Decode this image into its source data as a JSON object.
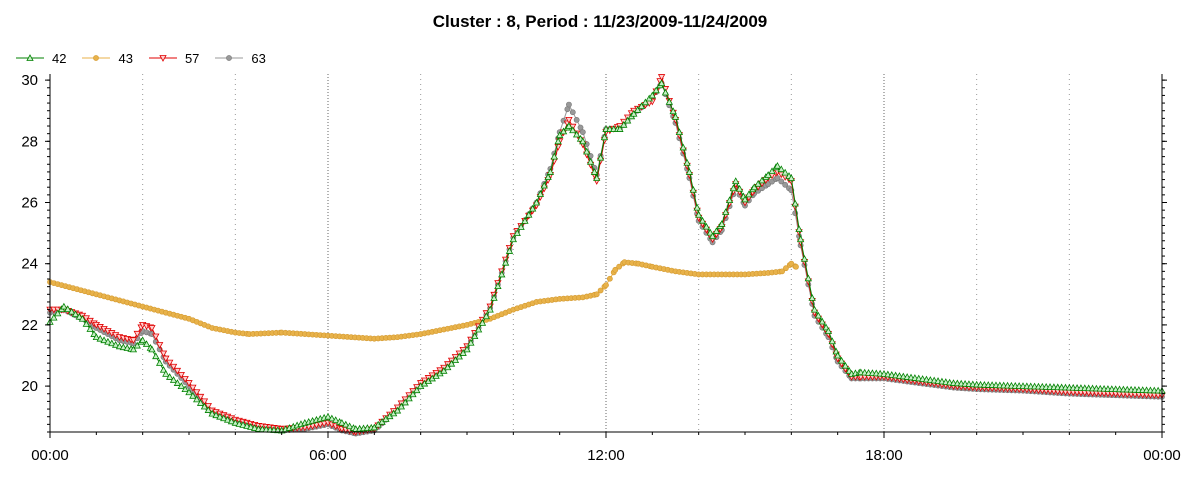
{
  "chart_data": {
    "type": "line",
    "title": "Cluster : 8, Period : 11/23/2009-11/24/2009",
    "xlabel": "",
    "ylabel": "",
    "x_ticks": [
      "00:00",
      "06:00",
      "12:00",
      "18:00",
      "00:00"
    ],
    "x_range_hours": [
      0,
      24
    ],
    "ylim": [
      18.5,
      30.2
    ],
    "y_ticks": [
      "20",
      "22",
      "24",
      "26",
      "28",
      "30"
    ],
    "grid": true,
    "legend_position": "top-left",
    "series": [
      {
        "name": "42",
        "color": "#008000",
        "marker": "triangle-up",
        "points": [
          [
            0,
            22.1
          ],
          [
            0.3,
            22.6
          ],
          [
            0.7,
            22.2
          ],
          [
            1.0,
            21.6
          ],
          [
            1.5,
            21.3
          ],
          [
            1.8,
            21.2
          ],
          [
            2.0,
            21.5
          ],
          [
            2.2,
            21.2
          ],
          [
            2.5,
            20.4
          ],
          [
            3.0,
            19.8
          ],
          [
            3.5,
            19.1
          ],
          [
            4.0,
            18.8
          ],
          [
            4.5,
            18.6
          ],
          [
            5.0,
            18.55
          ],
          [
            5.5,
            18.8
          ],
          [
            6.0,
            19.0
          ],
          [
            6.3,
            18.8
          ],
          [
            6.6,
            18.6
          ],
          [
            7.0,
            18.65
          ],
          [
            7.5,
            19.2
          ],
          [
            8.0,
            20.0
          ],
          [
            8.5,
            20.5
          ],
          [
            9.0,
            21.2
          ],
          [
            9.5,
            22.5
          ],
          [
            10.0,
            24.8
          ],
          [
            10.5,
            26.0
          ],
          [
            10.8,
            27.0
          ],
          [
            11.0,
            28.2
          ],
          [
            11.2,
            28.5
          ],
          [
            11.5,
            28.0
          ],
          [
            11.8,
            26.8
          ],
          [
            12.0,
            28.4
          ],
          [
            12.3,
            28.4
          ],
          [
            12.6,
            28.9
          ],
          [
            13.0,
            29.5
          ],
          [
            13.2,
            29.9
          ],
          [
            13.5,
            28.8
          ],
          [
            13.8,
            27.0
          ],
          [
            14.0,
            25.6
          ],
          [
            14.3,
            24.9
          ],
          [
            14.5,
            25.3
          ],
          [
            14.8,
            26.7
          ],
          [
            15.0,
            26.1
          ],
          [
            15.2,
            26.5
          ],
          [
            15.5,
            26.9
          ],
          [
            15.7,
            27.2
          ],
          [
            16.0,
            26.8
          ],
          [
            16.2,
            24.8
          ],
          [
            16.5,
            22.5
          ],
          [
            16.8,
            21.8
          ],
          [
            17.0,
            21.0
          ],
          [
            17.3,
            20.4
          ],
          [
            17.5,
            20.45
          ],
          [
            18.0,
            20.4
          ],
          [
            18.5,
            20.3
          ],
          [
            19.0,
            20.2
          ],
          [
            19.5,
            20.1
          ],
          [
            20.0,
            20.05
          ],
          [
            21.0,
            20.0
          ],
          [
            22.0,
            19.95
          ],
          [
            23.0,
            19.9
          ],
          [
            24.0,
            19.85
          ]
        ]
      },
      {
        "name": "43",
        "color": "#e8b24a",
        "marker": "circle",
        "points": [
          [
            0,
            23.4
          ],
          [
            0.5,
            23.2
          ],
          [
            1.0,
            23.0
          ],
          [
            1.5,
            22.8
          ],
          [
            2.0,
            22.6
          ],
          [
            2.5,
            22.4
          ],
          [
            3.0,
            22.2
          ],
          [
            3.5,
            21.9
          ],
          [
            4.0,
            21.75
          ],
          [
            4.3,
            21.7
          ],
          [
            5.0,
            21.75
          ],
          [
            6.0,
            21.65
          ],
          [
            7.0,
            21.55
          ],
          [
            7.5,
            21.6
          ],
          [
            8.0,
            21.7
          ],
          [
            8.5,
            21.85
          ],
          [
            9.0,
            22.0
          ],
          [
            9.5,
            22.2
          ],
          [
            10.0,
            22.5
          ],
          [
            10.5,
            22.75
          ],
          [
            11.0,
            22.85
          ],
          [
            11.5,
            22.9
          ],
          [
            11.8,
            23.0
          ],
          [
            12.0,
            23.3
          ],
          [
            12.2,
            23.8
          ],
          [
            12.4,
            24.05
          ],
          [
            12.7,
            24.0
          ],
          [
            13.0,
            23.9
          ],
          [
            13.5,
            23.75
          ],
          [
            14.0,
            23.65
          ],
          [
            14.5,
            23.65
          ],
          [
            15.0,
            23.65
          ],
          [
            15.5,
            23.7
          ],
          [
            15.8,
            23.75
          ],
          [
            16.0,
            24.0
          ],
          [
            16.1,
            23.9
          ]
        ]
      },
      {
        "name": "57",
        "color": "#e00000",
        "marker": "triangle-down",
        "points": [
          [
            0,
            22.5
          ],
          [
            0.3,
            22.5
          ],
          [
            0.7,
            22.3
          ],
          [
            1.0,
            22.0
          ],
          [
            1.5,
            21.6
          ],
          [
            1.8,
            21.5
          ],
          [
            2.0,
            22.0
          ],
          [
            2.2,
            21.9
          ],
          [
            2.5,
            20.9
          ],
          [
            3.0,
            20.1
          ],
          [
            3.5,
            19.2
          ],
          [
            4.0,
            18.9
          ],
          [
            4.5,
            18.7
          ],
          [
            5.0,
            18.6
          ],
          [
            5.5,
            18.65
          ],
          [
            6.0,
            18.8
          ],
          [
            6.3,
            18.6
          ],
          [
            6.6,
            18.5
          ],
          [
            7.0,
            18.6
          ],
          [
            7.5,
            19.3
          ],
          [
            8.0,
            20.1
          ],
          [
            8.5,
            20.6
          ],
          [
            9.0,
            21.3
          ],
          [
            9.5,
            22.6
          ],
          [
            10.0,
            24.9
          ],
          [
            10.5,
            25.9
          ],
          [
            10.8,
            26.9
          ],
          [
            11.0,
            28.0
          ],
          [
            11.2,
            28.7
          ],
          [
            11.5,
            27.9
          ],
          [
            11.8,
            26.7
          ],
          [
            12.0,
            28.3
          ],
          [
            12.3,
            28.5
          ],
          [
            12.6,
            29.0
          ],
          [
            13.0,
            29.3
          ],
          [
            13.2,
            30.1
          ],
          [
            13.5,
            28.7
          ],
          [
            13.8,
            26.9
          ],
          [
            14.0,
            25.5
          ],
          [
            14.3,
            24.8
          ],
          [
            14.5,
            25.2
          ],
          [
            14.8,
            26.6
          ],
          [
            15.0,
            26.0
          ],
          [
            15.2,
            26.4
          ],
          [
            15.5,
            26.8
          ],
          [
            15.7,
            27.0
          ],
          [
            16.0,
            26.7
          ],
          [
            16.2,
            24.7
          ],
          [
            16.5,
            22.4
          ],
          [
            16.8,
            21.7
          ],
          [
            17.0,
            20.9
          ],
          [
            17.3,
            20.3
          ],
          [
            17.5,
            20.3
          ],
          [
            18.0,
            20.3
          ],
          [
            18.5,
            20.2
          ],
          [
            19.0,
            20.1
          ],
          [
            19.5,
            20.0
          ],
          [
            20.0,
            19.95
          ],
          [
            21.0,
            19.9
          ],
          [
            22.0,
            19.8
          ],
          [
            23.0,
            19.75
          ],
          [
            24.0,
            19.7
          ]
        ]
      },
      {
        "name": "63",
        "color": "#999999",
        "marker": "circle",
        "points": [
          [
            0,
            22.4
          ],
          [
            0.3,
            22.5
          ],
          [
            0.7,
            22.2
          ],
          [
            1.0,
            21.9
          ],
          [
            1.5,
            21.5
          ],
          [
            1.8,
            21.4
          ],
          [
            2.0,
            21.8
          ],
          [
            2.2,
            21.7
          ],
          [
            2.5,
            20.8
          ],
          [
            3.0,
            20.0
          ],
          [
            3.5,
            19.1
          ],
          [
            4.0,
            18.8
          ],
          [
            4.5,
            18.65
          ],
          [
            5.0,
            18.55
          ],
          [
            5.5,
            18.6
          ],
          [
            6.0,
            18.75
          ],
          [
            6.3,
            18.55
          ],
          [
            6.6,
            18.45
          ],
          [
            7.0,
            18.55
          ],
          [
            7.5,
            19.25
          ],
          [
            8.0,
            20.05
          ],
          [
            8.5,
            20.55
          ],
          [
            9.0,
            21.25
          ],
          [
            9.5,
            22.55
          ],
          [
            10.0,
            24.85
          ],
          [
            10.5,
            26.0
          ],
          [
            10.8,
            27.1
          ],
          [
            11.0,
            28.3
          ],
          [
            11.2,
            29.2
          ],
          [
            11.5,
            28.3
          ],
          [
            11.8,
            26.9
          ],
          [
            12.0,
            28.4
          ],
          [
            12.3,
            28.4
          ],
          [
            12.6,
            28.9
          ],
          [
            13.0,
            29.4
          ],
          [
            13.2,
            29.9
          ],
          [
            13.5,
            28.6
          ],
          [
            13.8,
            26.8
          ],
          [
            14.0,
            25.4
          ],
          [
            14.3,
            24.7
          ],
          [
            14.5,
            25.1
          ],
          [
            14.8,
            26.5
          ],
          [
            15.0,
            25.9
          ],
          [
            15.2,
            26.3
          ],
          [
            15.5,
            26.6
          ],
          [
            15.7,
            26.8
          ],
          [
            16.0,
            26.4
          ],
          [
            16.2,
            24.6
          ],
          [
            16.5,
            22.3
          ],
          [
            16.8,
            21.6
          ],
          [
            17.0,
            20.8
          ],
          [
            17.3,
            20.25
          ],
          [
            17.5,
            20.25
          ],
          [
            18.0,
            20.25
          ],
          [
            18.5,
            20.15
          ],
          [
            19.0,
            20.05
          ],
          [
            19.5,
            19.95
          ],
          [
            20.0,
            19.9
          ],
          [
            21.0,
            19.85
          ],
          [
            22.0,
            19.75
          ],
          [
            23.0,
            19.7
          ],
          [
            24.0,
            19.65
          ]
        ]
      }
    ]
  }
}
